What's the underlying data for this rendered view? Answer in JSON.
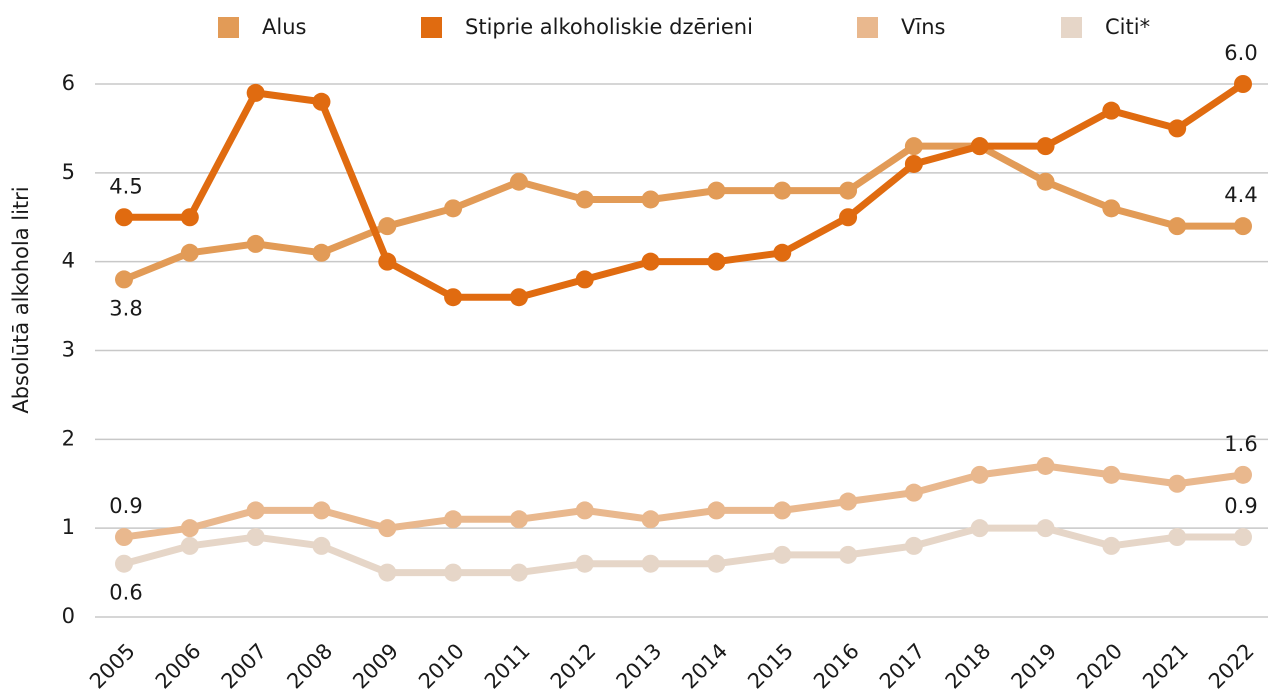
{
  "chart_data": {
    "type": "line",
    "y_label": "Absolūtā alkohola litri",
    "x": [
      "2005",
      "2006",
      "2007",
      "2008",
      "2009",
      "2010",
      "2011",
      "2012",
      "2013",
      "2014",
      "2015",
      "2016",
      "2017",
      "2018",
      "2019",
      "2020",
      "2021",
      "2022"
    ],
    "ylim": [
      0,
      6
    ],
    "yticks": [
      0,
      1,
      2,
      3,
      4,
      5,
      6
    ],
    "grid": true,
    "legend": "top",
    "series": [
      {
        "name": "Alus",
        "color": "#e29b57",
        "values": [
          3.8,
          4.1,
          4.2,
          4.1,
          4.4,
          4.6,
          4.9,
          4.7,
          4.7,
          4.8,
          4.8,
          4.8,
          5.3,
          5.3,
          4.9,
          4.6,
          4.4,
          4.4
        ],
        "value_labels": [
          "3.8",
          null,
          null,
          null,
          null,
          null,
          null,
          null,
          null,
          null,
          null,
          null,
          null,
          null,
          null,
          null,
          null,
          "4.4"
        ]
      },
      {
        "name": "Stiprie alkoholiskie dzērieni",
        "color": "#e06b10",
        "values": [
          4.5,
          4.5,
          5.9,
          5.8,
          4.0,
          3.6,
          3.6,
          3.8,
          4.0,
          4.0,
          4.1,
          4.5,
          5.1,
          5.3,
          5.3,
          5.7,
          5.5,
          6.0
        ],
        "value_labels": [
          "4.5",
          null,
          null,
          null,
          null,
          null,
          null,
          null,
          null,
          null,
          null,
          null,
          null,
          null,
          null,
          null,
          null,
          "6.0"
        ]
      },
      {
        "name": "Vīns",
        "color": "#e9b88e",
        "values": [
          0.9,
          1.0,
          1.2,
          1.2,
          1.0,
          1.1,
          1.1,
          1.2,
          1.1,
          1.2,
          1.2,
          1.3,
          1.4,
          1.6,
          1.7,
          1.6,
          1.5,
          1.6
        ],
        "value_labels": [
          "0.9",
          null,
          null,
          null,
          null,
          null,
          null,
          null,
          null,
          null,
          null,
          null,
          null,
          null,
          null,
          null,
          null,
          "1.6"
        ]
      },
      {
        "name": "Citi*",
        "color": "#e6d6c8",
        "values": [
          0.6,
          0.8,
          0.9,
          0.8,
          0.5,
          0.5,
          0.5,
          0.6,
          0.6,
          0.6,
          0.7,
          0.7,
          0.8,
          1.0,
          1.0,
          0.8,
          0.9,
          0.9
        ],
        "value_labels": [
          "0.6",
          null,
          null,
          null,
          null,
          null,
          null,
          null,
          null,
          null,
          null,
          null,
          null,
          null,
          null,
          null,
          null,
          "0.9"
        ]
      }
    ]
  }
}
